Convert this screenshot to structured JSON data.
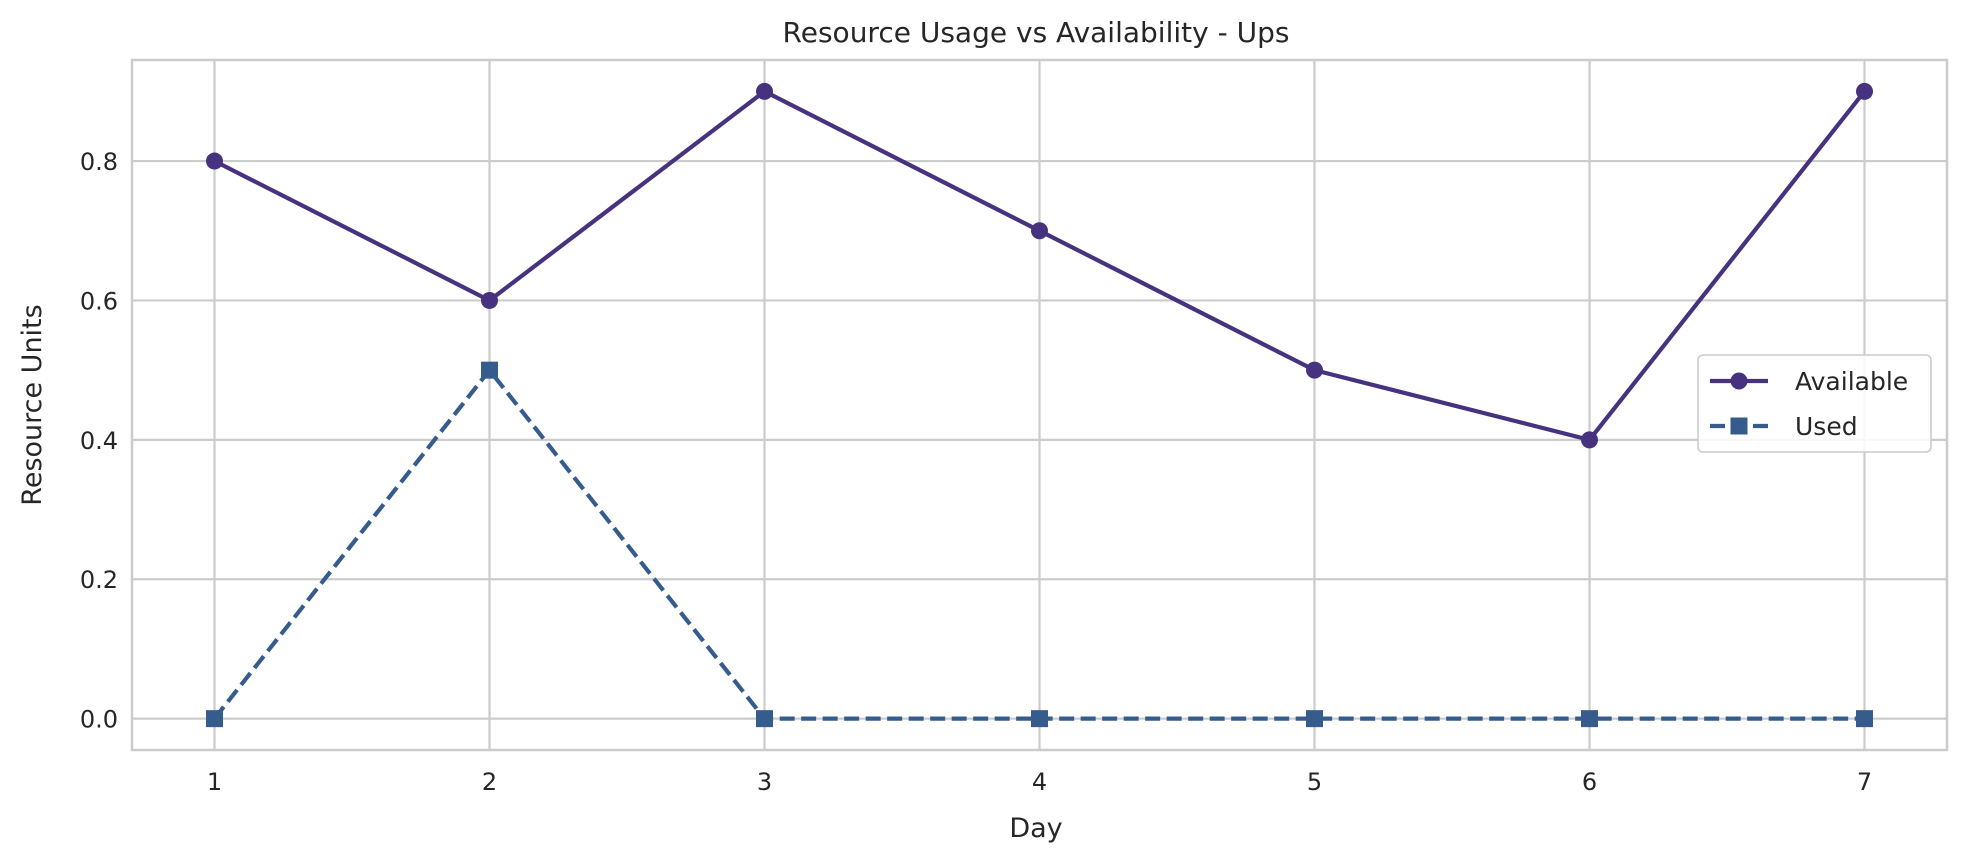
{
  "chart_data": {
    "type": "line",
    "title": "Resource Usage vs Availability - Ups",
    "xlabel": "Day",
    "ylabel": "Resource Units",
    "x": [
      1,
      2,
      3,
      4,
      5,
      6,
      7
    ],
    "xlim": [
      0.7,
      7.3
    ],
    "ylim": [
      -0.045,
      0.945
    ],
    "xticks": [
      1,
      2,
      3,
      4,
      5,
      6,
      7
    ],
    "xtick_labels": [
      "1",
      "2",
      "3",
      "4",
      "5",
      "6",
      "7"
    ],
    "yticks": [
      0.0,
      0.2,
      0.4,
      0.6,
      0.8
    ],
    "ytick_labels": [
      "0.0",
      "0.2",
      "0.4",
      "0.6",
      "0.8"
    ],
    "grid": true,
    "legend_position": "center-right",
    "series": [
      {
        "name": "Available",
        "values": [
          0.8,
          0.6,
          0.9,
          0.7,
          0.5,
          0.4,
          0.9
        ],
        "color": "#46327e",
        "marker": "circle",
        "line_style": "solid"
      },
      {
        "name": "Used",
        "values": [
          0.0,
          0.5,
          0.0,
          0.0,
          0.0,
          0.0,
          0.0
        ],
        "color": "#365c8d",
        "marker": "square",
        "line_style": "dashed"
      }
    ]
  }
}
